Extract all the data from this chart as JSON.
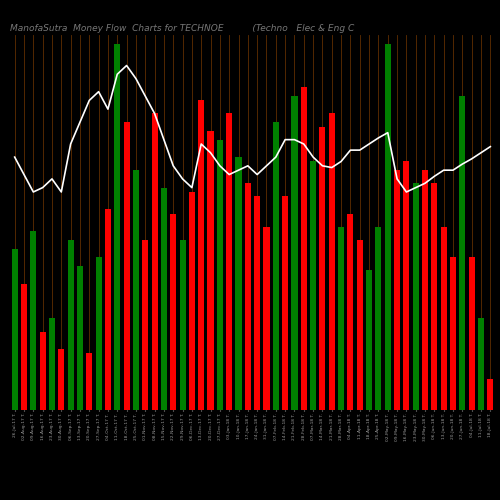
{
  "title": "ManofaSutra  Money Flow  Charts for TECHNOE          (Techno   Elec & Eng C",
  "bg_color": "#000000",
  "bar_colors": [
    "green",
    "red",
    "green",
    "red",
    "green",
    "red",
    "green",
    "green",
    "red",
    "green",
    "red",
    "green",
    "red",
    "green",
    "red",
    "red",
    "green",
    "red",
    "green",
    "red",
    "red",
    "red",
    "green",
    "red",
    "green",
    "red",
    "red",
    "red",
    "green",
    "red",
    "green",
    "red",
    "green",
    "red",
    "red",
    "green",
    "red",
    "red",
    "green",
    "green",
    "green",
    "red",
    "red",
    "green",
    "red",
    "red",
    "red",
    "red",
    "green",
    "red",
    "green",
    "red"
  ],
  "bar_values": [
    185,
    145,
    205,
    90,
    105,
    70,
    195,
    165,
    65,
    175,
    230,
    420,
    330,
    275,
    195,
    340,
    255,
    225,
    195,
    250,
    355,
    320,
    310,
    340,
    290,
    260,
    245,
    210,
    330,
    245,
    360,
    370,
    285,
    325,
    340,
    210,
    225,
    195,
    160,
    210,
    420,
    275,
    285,
    260,
    275,
    260,
    210,
    175,
    360,
    175,
    105,
    35
  ],
  "line_values": [
    290,
    270,
    250,
    255,
    265,
    250,
    305,
    330,
    355,
    365,
    345,
    385,
    395,
    380,
    360,
    340,
    310,
    280,
    265,
    255,
    305,
    295,
    280,
    270,
    275,
    280,
    270,
    280,
    290,
    310,
    310,
    305,
    290,
    280,
    278,
    285,
    298,
    298,
    305,
    312,
    318,
    265,
    250,
    255,
    260,
    268,
    275,
    275,
    282,
    288,
    295,
    302
  ],
  "grid_color": "#6B3300",
  "line_color": "#ffffff",
  "title_color": "#777777",
  "title_fontsize": 6.5,
  "ylim": [
    0,
    430
  ],
  "x_labels": [
    "26-Jul-17 T.",
    "02-Aug-17 T.",
    "09-Aug-17 T.",
    "16-Aug-17 T.",
    "23-Aug-17 T.",
    "30-Aug-17 T.",
    "06-Sep-17 T.",
    "13-Sep-17 T.",
    "20-Sep-17 T.",
    "27-Sep-17 T.",
    "04-Oct-17 T.",
    "11-Oct-17 T.",
    "18-Oct-17 T.",
    "25-Oct-17 T.",
    "01-Nov-17 T.",
    "08-Nov-17 T.",
    "15-Nov-17 T.",
    "22-Nov-17 T.",
    "29-Nov-17 T.",
    "06-Dec-17 T.",
    "13-Dec-17 T.",
    "20-Dec-17 T.",
    "27-Dec-17 T.",
    "03-Jan-18 T.",
    "10-Jan-18 T.",
    "17-Jan-18 T.",
    "24-Jan-18 T.",
    "31-Jan-18 T.",
    "07-Feb-18 T.",
    "14-Feb-18 T.",
    "21-Feb-18 T.",
    "28-Feb-18 T.",
    "07-Mar-18 T.",
    "14-Mar-18 T.",
    "21-Mar-18 T.",
    "28-Mar-18 T.",
    "04-Apr-18 T.",
    "11-Apr-18 T.",
    "18-Apr-18 T.",
    "25-Apr-18 T.",
    "02-May-18 T.",
    "09-May-18 T.",
    "16-May-18 T.",
    "23-May-18 T.",
    "30-May-18 T.",
    "06-Jun-18 T.",
    "13-Jun-18 T.",
    "20-Jun-18 T.",
    "27-Jun-18 T.",
    "04-Jul-18 T.",
    "11-Jul-18 T.",
    "18-Jul-18 T."
  ]
}
